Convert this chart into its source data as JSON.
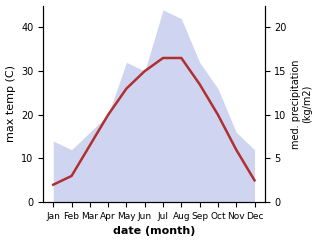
{
  "months": [
    "Jan",
    "Feb",
    "Mar",
    "Apr",
    "May",
    "Jun",
    "Jul",
    "Aug",
    "Sep",
    "Oct",
    "Nov",
    "Dec"
  ],
  "temp_max": [
    4,
    6,
    13,
    20,
    26,
    30,
    33,
    33,
    27,
    20,
    12,
    5
  ],
  "precipitation": [
    7,
    6,
    8,
    10,
    16,
    15,
    22,
    21,
    16,
    13,
    8,
    6
  ],
  "temp_ylim": [
    0,
    45
  ],
  "precip_ylim": [
    0,
    22.5
  ],
  "temp_yticks": [
    0,
    10,
    20,
    30,
    40
  ],
  "precip_yticks": [
    0,
    5,
    10,
    15,
    20
  ],
  "fill_color": "#b0b8e8",
  "fill_alpha": 0.6,
  "line_color": "#b03030",
  "line_width": 1.8,
  "xlabel": "date (month)",
  "ylabel_left": "max temp (C)",
  "ylabel_right": "med. precipitation\n(kg/m2)",
  "figsize": [
    3.18,
    2.42
  ],
  "dpi": 100,
  "precip_scale": 2.0
}
